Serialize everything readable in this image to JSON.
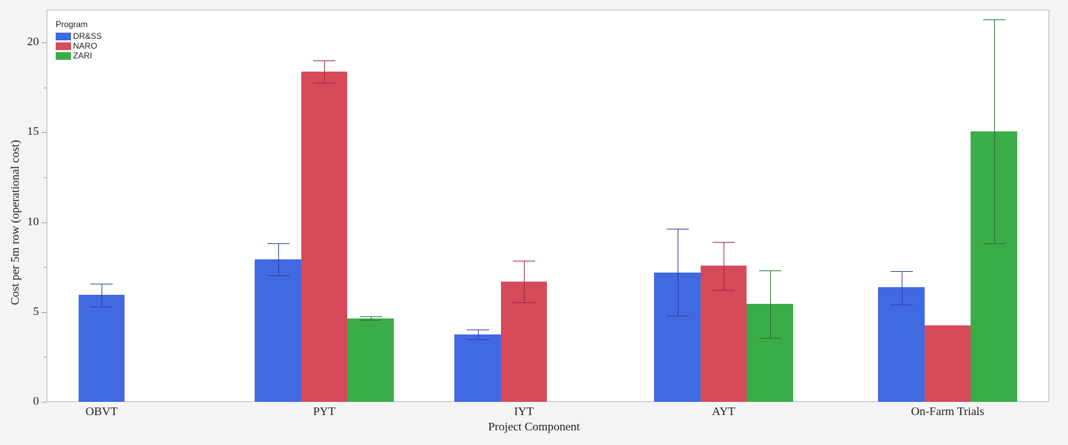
{
  "chart_data": {
    "type": "bar",
    "title": "",
    "xlabel": "Project Component",
    "ylabel": "Cost per 5m row (operational cost)",
    "ylim": [
      0,
      21.8
    ],
    "yticks": [
      0,
      5,
      10,
      15,
      20
    ],
    "categories": [
      "OBVT",
      "PYT",
      "IYT",
      "AYT",
      "On-Farm Trials"
    ],
    "legend": {
      "title": "Program",
      "position": "top-left"
    },
    "series": [
      {
        "name": "DR&SS",
        "color": "#4169e1",
        "values": [
          5.96,
          7.93,
          3.75,
          7.2,
          6.38
        ],
        "err_low": [
          5.3,
          7.04,
          3.48,
          4.8,
          5.42
        ],
        "err_high": [
          6.58,
          8.82,
          4.02,
          9.63,
          7.27
        ]
      },
      {
        "name": "NARO",
        "color": "#d64a5a",
        "values": [
          null,
          18.38,
          6.69,
          7.58,
          4.26
        ],
        "err_low": [
          null,
          17.76,
          5.53,
          6.23,
          null
        ],
        "err_high": [
          null,
          19.0,
          7.85,
          8.9,
          null
        ]
      },
      {
        "name": "ZARI",
        "color": "#3aad48",
        "values": [
          null,
          4.64,
          null,
          5.45,
          15.05
        ],
        "err_low": [
          null,
          4.55,
          null,
          3.56,
          8.82
        ],
        "err_high": [
          null,
          4.75,
          null,
          7.3,
          21.28
        ]
      }
    ],
    "grid": false
  },
  "axis": {
    "ylabel": "Cost per 5m row (operational cost)",
    "xlabel": "Project Component"
  },
  "legend": {
    "title": "Program",
    "items": [
      "DR&SS",
      "NARO",
      "ZARI"
    ]
  }
}
